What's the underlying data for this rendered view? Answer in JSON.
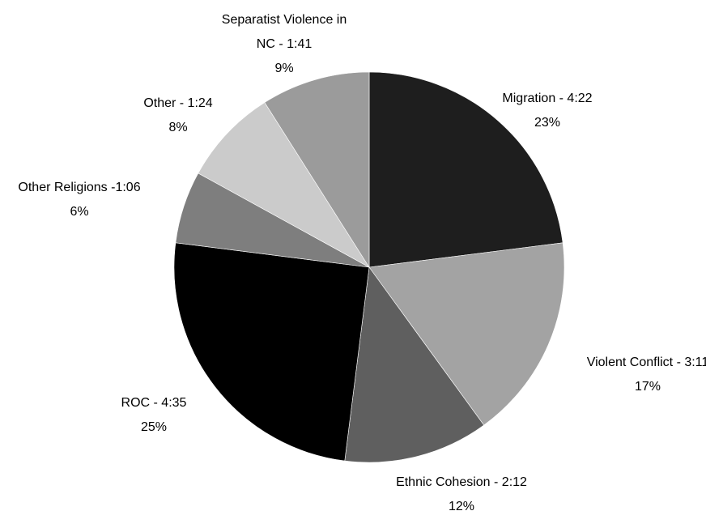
{
  "chart_data": {
    "type": "pie",
    "slices": [
      {
        "label": "Migration - 4:22",
        "label_lines": [
          "Migration - 4:22"
        ],
        "percent_label": "23%",
        "value": 23,
        "color": "#1e1e1e"
      },
      {
        "label": "Violent Conflict - 3:11",
        "label_lines": [
          "Violent Conflict - 3:11"
        ],
        "percent_label": "17%",
        "value": 17,
        "color": "#a3a3a3"
      },
      {
        "label": "Ethnic Cohesion - 2:12",
        "label_lines": [
          "Ethnic Cohesion - 2:12"
        ],
        "percent_label": "12%",
        "value": 12,
        "color": "#5f5f5f"
      },
      {
        "label": "ROC - 4:35",
        "label_lines": [
          "ROC - 4:35"
        ],
        "percent_label": "25%",
        "value": 25,
        "color": "#000000"
      },
      {
        "label": "Other Religions -1:06",
        "label_lines": [
          "Other Religions -1:06"
        ],
        "percent_label": "6%",
        "value": 6,
        "color": "#7e7e7e"
      },
      {
        "label": "Other - 1:24",
        "label_lines": [
          "Other - 1:24"
        ],
        "percent_label": "8%",
        "value": 8,
        "color": "#cbcbcb"
      },
      {
        "label": "Separatist Violence in NC - 1:41",
        "label_lines": [
          "Separatist Violence in",
          "NC - 1:41"
        ],
        "percent_label": "9%",
        "value": 9,
        "color": "#9b9b9b"
      }
    ]
  }
}
